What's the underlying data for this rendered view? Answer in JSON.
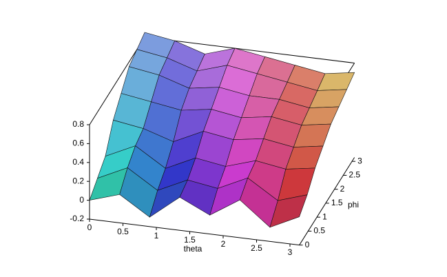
{
  "chart_data": {
    "type": "surface",
    "xlabel": "theta",
    "ylabel": "phi",
    "x": [
      0,
      0.45,
      0.9,
      1.35,
      1.8,
      2.25,
      2.7,
      3.14
    ],
    "y": [
      0,
      0.45,
      0.9,
      1.35,
      1.8,
      2.25,
      2.7,
      3.14
    ],
    "z": [
      [
        0.0,
        0.1,
        -0.1,
        0.15,
        0.0,
        0.2,
        -0.05,
        0.1
      ],
      [
        0.1,
        0.25,
        0.05,
        0.2,
        0.15,
        0.3,
        0.1,
        0.2
      ],
      [
        0.2,
        0.35,
        0.15,
        0.3,
        0.25,
        0.35,
        0.3,
        0.35
      ],
      [
        0.45,
        0.4,
        0.3,
        0.45,
        0.4,
        0.45,
        0.4,
        0.45
      ],
      [
        0.6,
        0.55,
        0.5,
        0.55,
        0.5,
        0.55,
        0.5,
        0.55
      ],
      [
        0.75,
        0.7,
        0.6,
        0.65,
        0.6,
        0.6,
        0.55,
        0.6
      ],
      [
        0.8,
        0.75,
        0.65,
        0.75,
        0.7,
        0.65,
        0.6,
        0.65
      ],
      [
        0.85,
        0.8,
        0.7,
        0.8,
        0.75,
        0.7,
        0.65,
        0.7
      ]
    ],
    "xlim": [
      0,
      3.14
    ],
    "ylim": [
      0,
      3.14
    ],
    "zlim": [
      -0.2,
      0.8
    ],
    "xticks": [
      0,
      0.5,
      1,
      1.5,
      2,
      2.5,
      3
    ],
    "yticks": [
      0,
      0.5,
      1,
      1.5,
      2,
      2.5,
      3
    ],
    "zticks": [
      -0.2,
      0,
      0.2,
      0.4,
      0.6,
      0.8
    ]
  }
}
